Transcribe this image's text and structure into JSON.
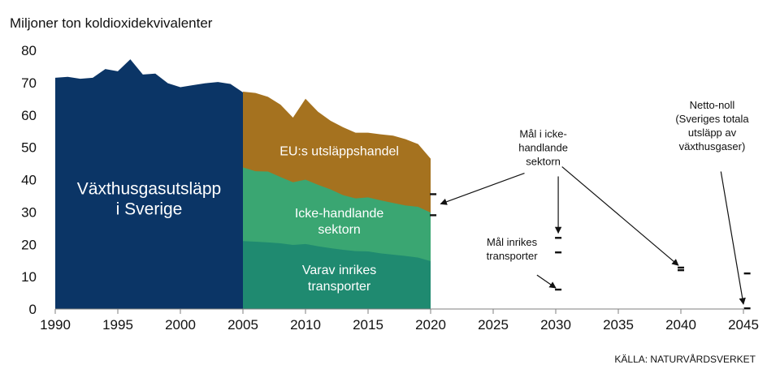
{
  "chart_data": {
    "type": "area",
    "ylabel": "Miljoner ton koldioxidekvivalenter",
    "source": "KÄLLA: NATURVÅRDSVERKET",
    "xlim": [
      1990,
      2045
    ],
    "ylim": [
      0,
      80
    ],
    "x_ticks": [
      1990,
      1995,
      2000,
      2005,
      2010,
      2015,
      2020,
      2025,
      2030,
      2035,
      2040,
      2045
    ],
    "y_ticks": [
      0,
      10,
      20,
      30,
      40,
      50,
      60,
      70,
      80
    ],
    "grid": false,
    "colors": {
      "total": "#0b3566",
      "ets": "#a5721f",
      "non_trading": "#3aa672",
      "transport": "#1f8a70",
      "mark": "#111111"
    },
    "series": [
      {
        "key": "total",
        "x": [
          1990,
          1991,
          1992,
          1993,
          1994,
          1995,
          1996,
          1997,
          1998,
          1999,
          2000,
          2001,
          2002,
          2003,
          2004,
          2005
        ],
        "values": [
          71.5,
          71.8,
          71.2,
          71.5,
          74.2,
          73.5,
          77.2,
          72.5,
          72.8,
          69.8,
          68.6,
          69.2,
          69.8,
          70.2,
          69.6,
          67.0
        ]
      },
      {
        "key": "ets",
        "x": [
          2005,
          2006,
          2007,
          2008,
          2009,
          2010,
          2011,
          2012,
          2013,
          2014,
          2015,
          2016,
          2017,
          2018,
          2019,
          2020
        ],
        "values": [
          67.2,
          66.8,
          65.6,
          63.2,
          59.2,
          65.0,
          61.0,
          58.2,
          56.2,
          54.5,
          54.5,
          54.0,
          53.6,
          52.5,
          51.0,
          46.5
        ]
      },
      {
        "key": "non_trading",
        "x": [
          2005,
          2006,
          2007,
          2008,
          2009,
          2010,
          2011,
          2012,
          2013,
          2014,
          2015,
          2016,
          2017,
          2018,
          2019,
          2020
        ],
        "values": [
          43.8,
          42.6,
          42.5,
          40.8,
          39.2,
          40.0,
          38.4,
          37.0,
          35.2,
          34.2,
          34.5,
          33.6,
          32.8,
          32.0,
          31.6,
          29.8
        ]
      },
      {
        "key": "transport",
        "x": [
          2005,
          2006,
          2007,
          2008,
          2009,
          2010,
          2011,
          2012,
          2013,
          2014,
          2015,
          2016,
          2017,
          2018,
          2019,
          2020
        ],
        "values": [
          21.0,
          20.8,
          20.6,
          20.3,
          19.8,
          20.1,
          19.4,
          18.8,
          18.3,
          17.9,
          17.8,
          17.2,
          16.8,
          16.4,
          15.9,
          14.8
        ]
      }
    ],
    "area_labels": {
      "total": [
        "Växthusgasutsläpp",
        "i Sverige"
      ],
      "ets": [
        "EU:s utsläppshandel"
      ],
      "non_trading": [
        "Icke-handlande",
        "sektorn"
      ],
      "transport": [
        "Varav inrikes",
        "transporter"
      ]
    },
    "targets": [
      {
        "x": 2020.2,
        "y": 35.5
      },
      {
        "x": 2020.2,
        "y": 29.0
      },
      {
        "x": 2030.2,
        "y": 22.0
      },
      {
        "x": 2030.2,
        "y": 17.5
      },
      {
        "x": 2030.2,
        "y": 6.0
      },
      {
        "x": 2040.0,
        "y": 12.8
      },
      {
        "x": 2040.0,
        "y": 12.0
      },
      {
        "x": 2045.3,
        "y": 11.0
      },
      {
        "x": 2045.3,
        "y": 0.2
      }
    ],
    "annotations": [
      {
        "key": "non_trading_goal",
        "lines": [
          "Mål i icke-",
          "handlande",
          "sektorn"
        ],
        "text_at": [
          2029.0,
          53.0
        ],
        "arrows": [
          {
            "from": [
              2027.5,
              42.0
            ],
            "to": [
              2020.8,
              32.5
            ]
          },
          {
            "from": [
              2030.2,
              41.0
            ],
            "to": [
              2030.2,
              23.5
            ]
          },
          {
            "from": [
              2030.5,
              44.0
            ],
            "to": [
              2039.8,
              13.5
            ]
          }
        ]
      },
      {
        "key": "transport_goal",
        "lines": [
          "Mål inrikes",
          "transporter"
        ],
        "text_at": [
          2026.5,
          19.5
        ],
        "arrows": [
          {
            "from": [
              2028.5,
              10.5
            ],
            "to": [
              2030.0,
              6.5
            ]
          }
        ]
      },
      {
        "key": "net_zero",
        "lines": [
          "Netto-noll",
          "(Sveriges totala",
          "utsläpp av",
          "växthusgaser)"
        ],
        "text_at": [
          2042.5,
          62.0
        ],
        "arrows": [
          {
            "from": [
              2043.2,
              42.5
            ],
            "to": [
              2045.0,
              1.5
            ]
          }
        ]
      }
    ]
  }
}
